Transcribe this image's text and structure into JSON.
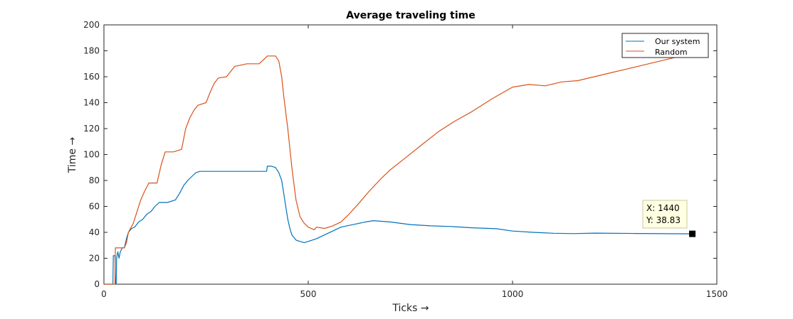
{
  "chart_data": {
    "type": "line",
    "title": "Average traveling time",
    "xlabel": "Ticks →",
    "ylabel": "Time →",
    "xlim": [
      0,
      1500
    ],
    "ylim": [
      0,
      200
    ],
    "xticks": [
      0,
      500,
      1000,
      1500
    ],
    "yticks": [
      0,
      20,
      40,
      60,
      80,
      100,
      120,
      140,
      160,
      180,
      200
    ],
    "grid": false,
    "legend_position": "top-right",
    "series": [
      {
        "name": "Our system",
        "color": "#0072BD",
        "points": [
          [
            0,
            0
          ],
          [
            22,
            0
          ],
          [
            23,
            22
          ],
          [
            27,
            22
          ],
          [
            28,
            0
          ],
          [
            30,
            0
          ],
          [
            31,
            20
          ],
          [
            34,
            25
          ],
          [
            37,
            20
          ],
          [
            40,
            25
          ],
          [
            45,
            28
          ],
          [
            50,
            28
          ],
          [
            55,
            35
          ],
          [
            60,
            40
          ],
          [
            68,
            43
          ],
          [
            75,
            44
          ],
          [
            85,
            48
          ],
          [
            95,
            50
          ],
          [
            105,
            54
          ],
          [
            115,
            56
          ],
          [
            125,
            60
          ],
          [
            135,
            63
          ],
          [
            155,
            63
          ],
          [
            175,
            65
          ],
          [
            185,
            70
          ],
          [
            195,
            76
          ],
          [
            205,
            80
          ],
          [
            215,
            83
          ],
          [
            225,
            86
          ],
          [
            235,
            87
          ],
          [
            300,
            87
          ],
          [
            350,
            87
          ],
          [
            398,
            87
          ],
          [
            400,
            91
          ],
          [
            410,
            91
          ],
          [
            420,
            90
          ],
          [
            428,
            86
          ],
          [
            435,
            80
          ],
          [
            440,
            70
          ],
          [
            445,
            60
          ],
          [
            450,
            50
          ],
          [
            455,
            43
          ],
          [
            460,
            38
          ],
          [
            470,
            34
          ],
          [
            480,
            33
          ],
          [
            490,
            32
          ],
          [
            500,
            33
          ],
          [
            520,
            35
          ],
          [
            540,
            38
          ],
          [
            560,
            41
          ],
          [
            580,
            44
          ],
          [
            610,
            46
          ],
          [
            640,
            48
          ],
          [
            660,
            49
          ],
          [
            700,
            48
          ],
          [
            750,
            46
          ],
          [
            800,
            45
          ],
          [
            850,
            44.5
          ],
          [
            900,
            43.5
          ],
          [
            960,
            42.8
          ],
          [
            1000,
            41
          ],
          [
            1050,
            40
          ],
          [
            1100,
            39.3
          ],
          [
            1150,
            39
          ],
          [
            1200,
            39.4
          ],
          [
            1300,
            39.1
          ],
          [
            1400,
            38.9
          ],
          [
            1440,
            38.83
          ]
        ]
      },
      {
        "name": "Random",
        "color": "#D95319",
        "points": [
          [
            0,
            0
          ],
          [
            27,
            0
          ],
          [
            28,
            28
          ],
          [
            50,
            28
          ],
          [
            55,
            32
          ],
          [
            60,
            40
          ],
          [
            65,
            43
          ],
          [
            72,
            47
          ],
          [
            80,
            55
          ],
          [
            90,
            65
          ],
          [
            100,
            72
          ],
          [
            110,
            78
          ],
          [
            130,
            78
          ],
          [
            140,
            92
          ],
          [
            150,
            102
          ],
          [
            170,
            102
          ],
          [
            190,
            104
          ],
          [
            200,
            120
          ],
          [
            210,
            128
          ],
          [
            220,
            134
          ],
          [
            230,
            138
          ],
          [
            250,
            140
          ],
          [
            260,
            148
          ],
          [
            270,
            155
          ],
          [
            280,
            159
          ],
          [
            300,
            160
          ],
          [
            320,
            168
          ],
          [
            350,
            170
          ],
          [
            380,
            170
          ],
          [
            390,
            173
          ],
          [
            400,
            176
          ],
          [
            420,
            176
          ],
          [
            428,
            172
          ],
          [
            435,
            160
          ],
          [
            440,
            145
          ],
          [
            450,
            120
          ],
          [
            460,
            90
          ],
          [
            470,
            65
          ],
          [
            480,
            52
          ],
          [
            490,
            47
          ],
          [
            500,
            44
          ],
          [
            515,
            42
          ],
          [
            520,
            44
          ],
          [
            540,
            43
          ],
          [
            560,
            45
          ],
          [
            580,
            48
          ],
          [
            600,
            54
          ],
          [
            620,
            61
          ],
          [
            650,
            72
          ],
          [
            680,
            82
          ],
          [
            700,
            88
          ],
          [
            740,
            98
          ],
          [
            780,
            108
          ],
          [
            820,
            118
          ],
          [
            860,
            126
          ],
          [
            900,
            133
          ],
          [
            950,
            143
          ],
          [
            1000,
            152
          ],
          [
            1040,
            154
          ],
          [
            1080,
            153
          ],
          [
            1120,
            156
          ],
          [
            1160,
            157
          ],
          [
            1200,
            160
          ],
          [
            1240,
            163
          ],
          [
            1280,
            166
          ],
          [
            1320,
            169
          ],
          [
            1360,
            172
          ],
          [
            1400,
            175
          ],
          [
            1440,
            178
          ]
        ]
      }
    ],
    "datatip": {
      "x_label": "X: 1440",
      "y_label": "Y: 38.83",
      "x": 1440,
      "y": 38.83
    }
  }
}
